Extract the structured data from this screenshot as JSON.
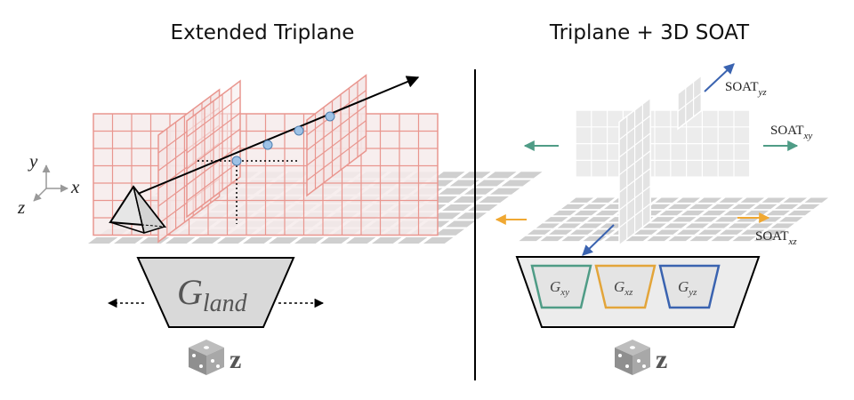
{
  "left_panel": {
    "title": "Extended Triplane",
    "axes": {
      "x": "x",
      "y": "y",
      "z": "z"
    },
    "generator": {
      "base": "G",
      "sub": "land"
    },
    "noise": "z"
  },
  "right_panel": {
    "title": "Triplane + 3D SOAT",
    "soat_yz": {
      "base": "SOAT",
      "sub": "yz"
    },
    "soat_xy": {
      "base": "SOAT",
      "sub": "xy"
    },
    "soat_xz": {
      "base": "SOAT",
      "sub": "xz"
    },
    "generators": [
      {
        "base": "G",
        "sub": "xy",
        "color": "#4f9c86"
      },
      {
        "base": "G",
        "sub": "xz",
        "color": "#e3a53a"
      },
      {
        "base": "G",
        "sub": "yz",
        "color": "#3a63b0"
      }
    ],
    "noise": "z"
  },
  "colors": {
    "grid_red": "#e9968f",
    "grid_gray": "#cfcfcf",
    "teal": "#4f9c86",
    "orange": "#f0a832",
    "blue": "#3a63b0",
    "ray_point": "#9ec2e6"
  }
}
